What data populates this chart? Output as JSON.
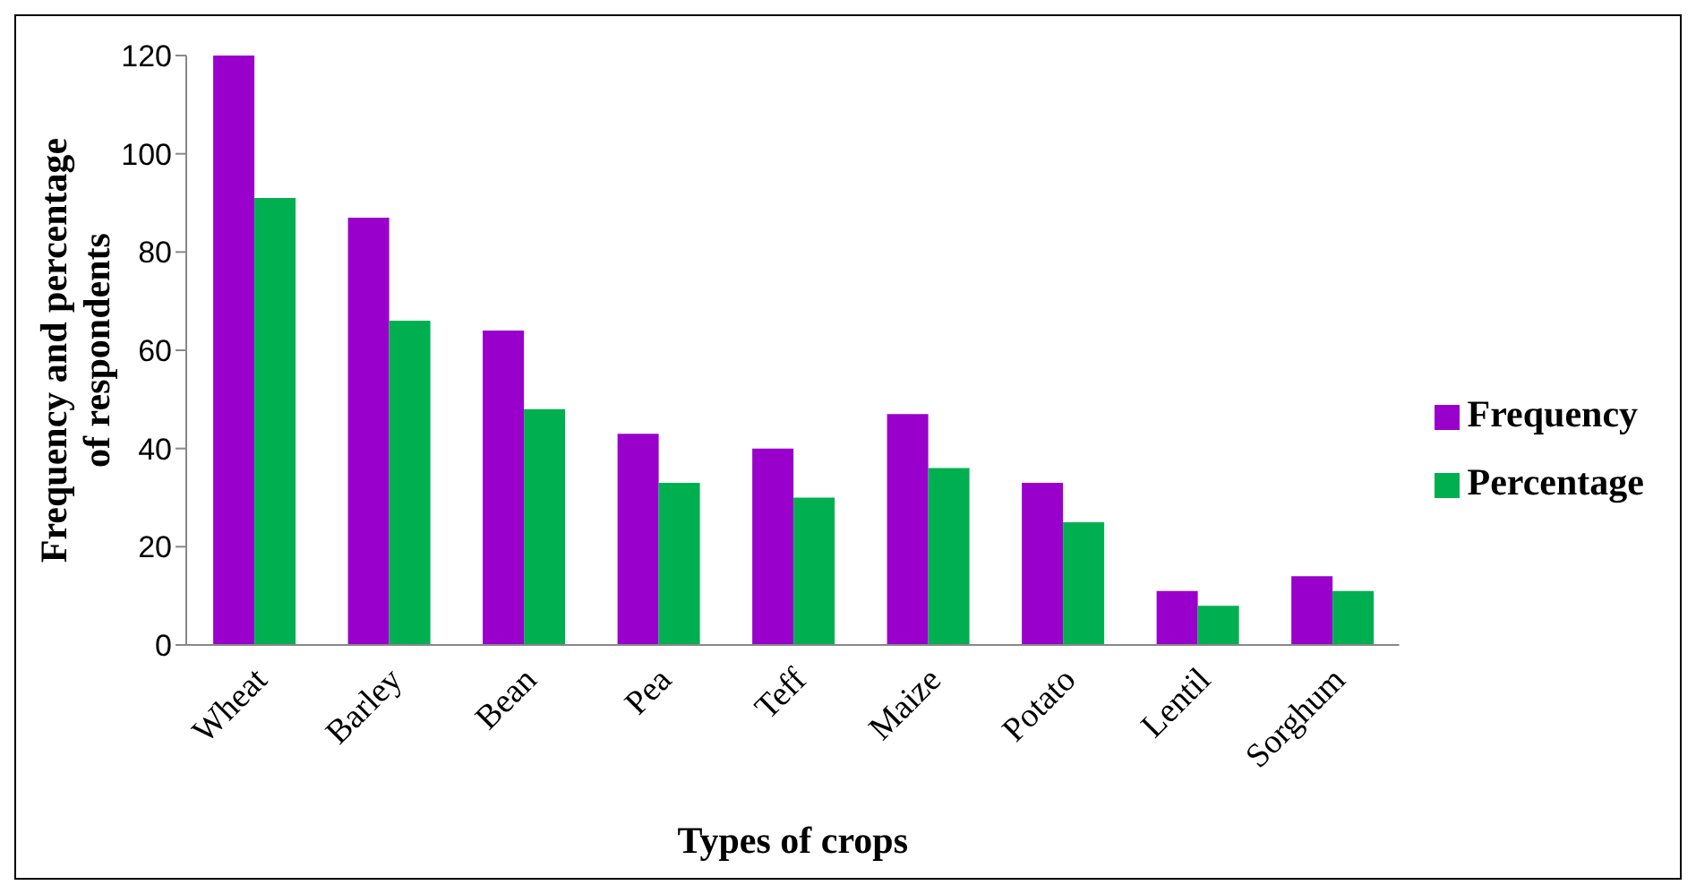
{
  "chart_data": {
    "type": "bar",
    "xlabel": "Types of crops",
    "ylabel": "Frequency and percentage of respondents",
    "categories": [
      "Wheat",
      "Barley",
      "Bean",
      "Pea",
      "Teff",
      "Maize",
      "Potato",
      "Lentil",
      "Sorghum"
    ],
    "series": [
      {
        "name": "Frequency",
        "color": "#9900cc",
        "values": [
          120,
          87,
          64,
          43,
          40,
          47,
          33,
          11,
          14
        ]
      },
      {
        "name": "Percentage",
        "color": "#00b050",
        "values": [
          91,
          66,
          48,
          33,
          30,
          36,
          25,
          8,
          11
        ]
      }
    ],
    "ylim": [
      0,
      120
    ],
    "yticks": [
      0,
      20,
      40,
      60,
      80,
      100,
      120
    ],
    "grid": false,
    "legend": "right"
  }
}
